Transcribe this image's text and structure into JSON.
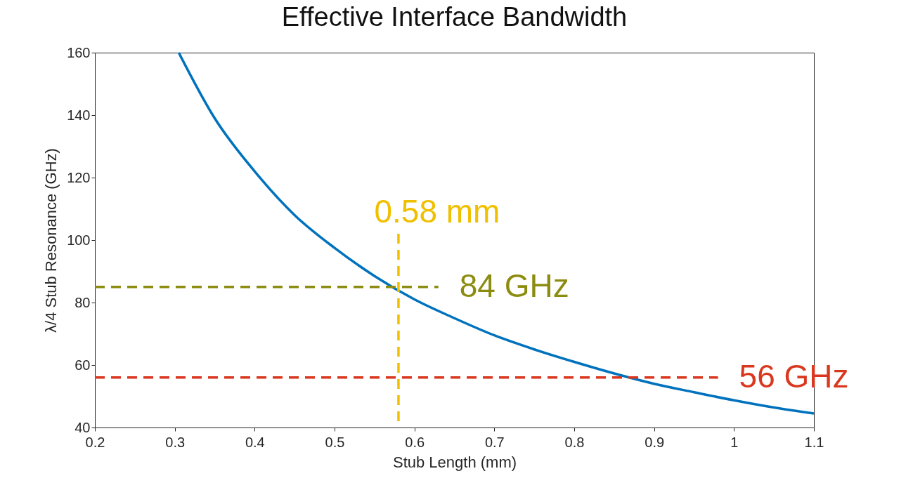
{
  "chart_data": {
    "type": "line",
    "title": "Effective Interface Bandwidth",
    "xlabel": "Stub Length (mm)",
    "ylabel": "λ/4 Stub Resonance (GHz)",
    "x": [
      0.305,
      0.35,
      0.4,
      0.45,
      0.5,
      0.55,
      0.6,
      0.65,
      0.7,
      0.75,
      0.8,
      0.85,
      0.9,
      0.95,
      1.0,
      1.05,
      1.1
    ],
    "series": [
      {
        "color": "#0072bd",
        "values": [
          160,
          139,
          122,
          108,
          97.5,
          88.5,
          81,
          75,
          69.5,
          65,
          61,
          57.3,
          54,
          51.3,
          48.7,
          46.4,
          44.5
        ]
      },
      {
        "color": "#8c8c10",
        "line_style": "dashed",
        "x": [
          0.2,
          0.63
        ],
        "values": [
          85,
          85
        ]
      },
      {
        "color": "#d9381e",
        "line_style": "dashed",
        "x": [
          0.2,
          0.98
        ],
        "values": [
          56,
          56
        ]
      },
      {
        "color": "#f0c000",
        "line_style": "dashed",
        "x": [
          0.58,
          0.58
        ],
        "values": [
          42,
          103
        ]
      }
    ],
    "annotations": [
      {
        "text": "84 GHz",
        "x": 0.63,
        "y": 85
      },
      {
        "text": "56 GHz",
        "x": 0.98,
        "y": 56
      },
      {
        "text": "0.58 mm",
        "x": 0.58,
        "y": 103
      }
    ],
    "xlim": [
      0.2,
      1.1
    ],
    "xticks": [
      0.2,
      0.3,
      0.4,
      0.5,
      0.6,
      0.7,
      0.8,
      0.9,
      1,
      1.1
    ],
    "ylim": [
      40,
      160
    ],
    "yticks": [
      40,
      60,
      80,
      100,
      120,
      140,
      160
    ],
    "grid": false
  }
}
